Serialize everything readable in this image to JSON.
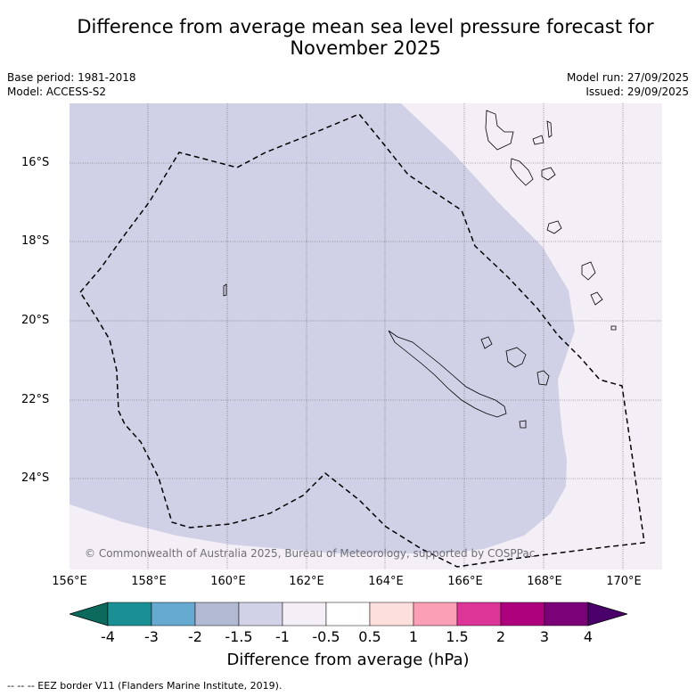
{
  "title": "Difference from average mean sea level pressure forecast for November 2025",
  "meta": {
    "base_period": "Base period: 1981-2018",
    "model": "Model: ACCESS-S2",
    "model_run": "Model run: 27/09/2025",
    "issued": "Issued: 29/09/2025"
  },
  "map": {
    "lat_labels": [
      "16°S",
      "18°S",
      "20°S",
      "22°S",
      "24°S"
    ],
    "lon_labels": [
      "156°E",
      "158°E",
      "160°E",
      "162°E",
      "164°E",
      "166°E",
      "168°E",
      "170°E"
    ],
    "copyright": "© Commonwealth of Australia 2025, Bureau of Meteorology, supported by COSPPac",
    "colors": {
      "anomaly_neg_1_5_to_neg_1": "#d0d1e6",
      "anomaly_neg_1_to_neg_0_5": "#f4eef6",
      "eez_border": "#000000"
    }
  },
  "colorbar": {
    "ticks": [
      "-4",
      "-3",
      "-2",
      "-1.5",
      "-1",
      "-0.5",
      "0.5",
      "1",
      "1.5",
      "2",
      "3",
      "4"
    ],
    "colors": [
      "#1b9094",
      "#66a9d1",
      "#b2bad3",
      "#d1d2e7",
      "#f4eef6",
      "#ffffff",
      "#fde0dd",
      "#fa9fb5",
      "#dd3497",
      "#ae017e",
      "#7a0177"
    ],
    "under_color": "#0b6a5c",
    "over_color": "#49006a",
    "label": "Difference from average (hPa)"
  },
  "footnote": "--  --  -- EEZ border V11 (Flanders Marine Institute, 2019)."
}
